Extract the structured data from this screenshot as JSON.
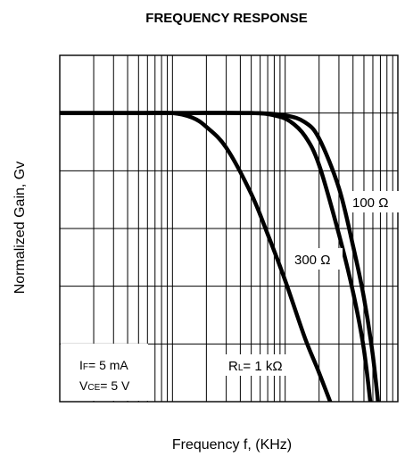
{
  "chart_data": {
    "type": "line",
    "title": "FREQUENCY RESPONSE",
    "xlabel": "Frequency f, (KHz)",
    "ylabel": "Normalized Gain, Gv",
    "x_scale": "log",
    "xlim": [
      1,
      1000
    ],
    "ylim": [
      -25,
      5
    ],
    "grid": true,
    "conditions": [
      {
        "sym": "I",
        "sub": "F",
        "rest": "= 5 mA"
      },
      {
        "sym": "V",
        "sub": "CE",
        "rest": "= 5 V"
      }
    ],
    "series": [
      {
        "label_sym": "R",
        "label_sub": "L",
        "label_rest": "= 1  kΩ",
        "x": [
          1,
          5,
          10,
          15,
          20,
          30,
          50,
          70,
          100,
          150,
          200,
          300
        ],
        "y": [
          0,
          0,
          0,
          -0.4,
          -1.2,
          -3,
          -7,
          -10.5,
          -14.5,
          -19.5,
          -22.5,
          -27
        ]
      },
      {
        "label_rest": "300 Ω",
        "x": [
          1,
          10,
          50,
          80,
          110,
          150,
          200,
          300,
          400,
          500,
          600
        ],
        "y": [
          0,
          0,
          0,
          -0.2,
          -0.7,
          -2,
          -4.5,
          -10.5,
          -15.5,
          -20.5,
          -27
        ]
      },
      {
        "label_rest": "100 Ω",
        "x": [
          1,
          10,
          50,
          100,
          150,
          200,
          300,
          400,
          500,
          600,
          700
        ],
        "y": [
          0,
          0,
          0,
          -0.2,
          -0.8,
          -2.2,
          -6.5,
          -11.5,
          -16,
          -21,
          -27
        ]
      }
    ]
  }
}
